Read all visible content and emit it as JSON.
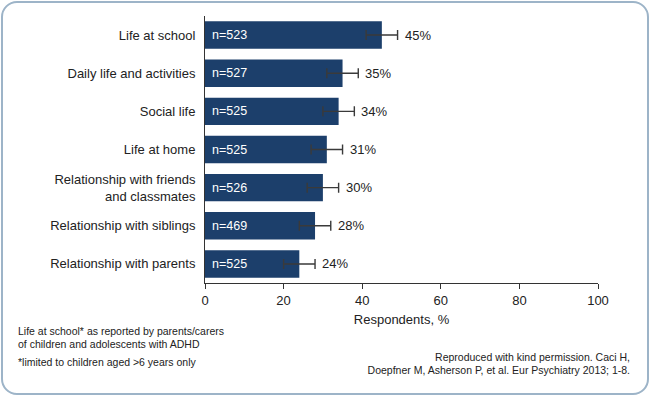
{
  "chart_data": {
    "type": "bar",
    "orientation": "horizontal",
    "categories": [
      "Life at school",
      "Daily life and activities",
      "Social life",
      "Life at home",
      "Relationship with friends\nand classmates",
      "Relationship with siblings",
      "Relationship with parents"
    ],
    "values": [
      45,
      35,
      34,
      31,
      30,
      28,
      24
    ],
    "error": [
      4,
      4,
      4,
      4,
      4,
      4,
      4
    ],
    "value_labels": [
      "45%",
      "35%",
      "34%",
      "31%",
      "30%",
      "28%",
      "24%"
    ],
    "data_labels": true,
    "bar_labels": [
      "n=523",
      "n=527",
      "n=525",
      "n=525",
      "n=526",
      "n=469",
      "n=525"
    ],
    "color": "#1c3f6b",
    "x_label": "Respondents, %",
    "xlim": [
      0,
      100
    ],
    "xticks": [
      0,
      20,
      40,
      60,
      80,
      100
    ],
    "grid": false,
    "annotations": [
      "Life at school* as reported by parents/carers\nof children and adolescents with ADHD",
      "*limited to children aged >6 years only",
      "Reproduced with kind permission. Caci H,\nDoepfner M, Asherson P, et al. Eur Psychiatry 2013; 1-8."
    ]
  }
}
